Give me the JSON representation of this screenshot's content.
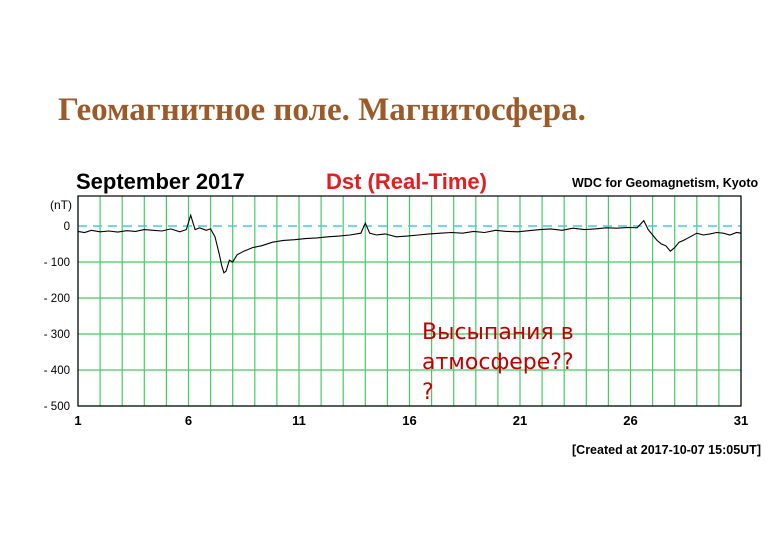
{
  "slide": {
    "title": "Геомагнитное поле.  Магнитосфера.",
    "annotation_lines": [
      "Высыпания в",
      "атмосфере??",
      "?"
    ]
  },
  "chart_data": {
    "type": "line",
    "title": "Dst (Real-Time)",
    "month_label": "September  2017",
    "source": "WDC for Geomagnetism, Kyoto",
    "created": "[Created at 2017-10-07 15:05UT]",
    "ylabel": "(nT)",
    "xlim": [
      1,
      31
    ],
    "ylim": [
      -500,
      60
    ],
    "x_ticks": [
      1,
      6,
      11,
      16,
      21,
      26,
      31
    ],
    "x_tick_labels": [
      "1",
      "6",
      "11",
      "16",
      "21",
      "26",
      "31"
    ],
    "y_ticks": [
      0,
      -100,
      -200,
      -300,
      -400,
      -500
    ],
    "y_tick_labels": [
      "0",
      "- 100",
      "- 200",
      "- 300",
      "- 400",
      "- 500"
    ],
    "x_minor_grid": [
      1,
      2,
      3,
      4,
      5,
      6,
      7,
      8,
      9,
      10,
      11,
      12,
      13,
      14,
      15,
      16,
      17,
      18,
      19,
      20,
      21,
      22,
      23,
      24,
      25,
      26,
      27,
      28,
      29,
      30,
      31
    ],
    "grid": true,
    "colors": {
      "series": "#000000",
      "grid": "#44cc66",
      "zero": "#44ccdd",
      "title": "#e02020",
      "annotation": "#c00000"
    },
    "series": [
      {
        "x": [
          1.0,
          1.3,
          1.6,
          2.0,
          2.4,
          2.8,
          3.2,
          3.6,
          4.0,
          4.4,
          4.8,
          5.2,
          5.6,
          5.9,
          6.1,
          6.3,
          6.5,
          6.8,
          7.0,
          7.2,
          7.4,
          7.5,
          7.6,
          7.7,
          7.85,
          8.0,
          8.2,
          8.5,
          8.9,
          9.3,
          9.8,
          10.3,
          10.8,
          11.3,
          11.8,
          12.3,
          12.8,
          13.3,
          13.8,
          14.0,
          14.2,
          14.5,
          14.9,
          15.4,
          15.9,
          16.4,
          16.9,
          17.4,
          17.9,
          18.4,
          18.9,
          19.4,
          19.9,
          20.4,
          20.9,
          21.4,
          21.9,
          22.4,
          22.9,
          23.4,
          23.9,
          24.4,
          24.9,
          25.4,
          25.9,
          26.3,
          26.6,
          26.8,
          27.0,
          27.2,
          27.4,
          27.6,
          27.8,
          28.0,
          28.2,
          28.4,
          28.7,
          29.0,
          29.3,
          29.6,
          29.9,
          30.2,
          30.5,
          30.8,
          31.0
        ],
        "y": [
          -15,
          -18,
          -12,
          -16,
          -14,
          -17,
          -13,
          -15,
          -10,
          -12,
          -14,
          -8,
          -16,
          -10,
          30,
          -10,
          -5,
          -12,
          -8,
          -30,
          -80,
          -110,
          -130,
          -125,
          -95,
          -100,
          -80,
          -70,
          -60,
          -55,
          -45,
          -40,
          -38,
          -35,
          -33,
          -30,
          -28,
          -25,
          -20,
          8,
          -20,
          -25,
          -22,
          -30,
          -28,
          -25,
          -22,
          -20,
          -18,
          -20,
          -15,
          -18,
          -12,
          -15,
          -16,
          -13,
          -10,
          -8,
          -12,
          -6,
          -10,
          -8,
          -5,
          -6,
          -4,
          -5,
          15,
          -10,
          -25,
          -40,
          -50,
          -55,
          -70,
          -60,
          -45,
          -40,
          -30,
          -20,
          -25,
          -22,
          -18,
          -20,
          -25,
          -18,
          -20
        ]
      }
    ]
  }
}
